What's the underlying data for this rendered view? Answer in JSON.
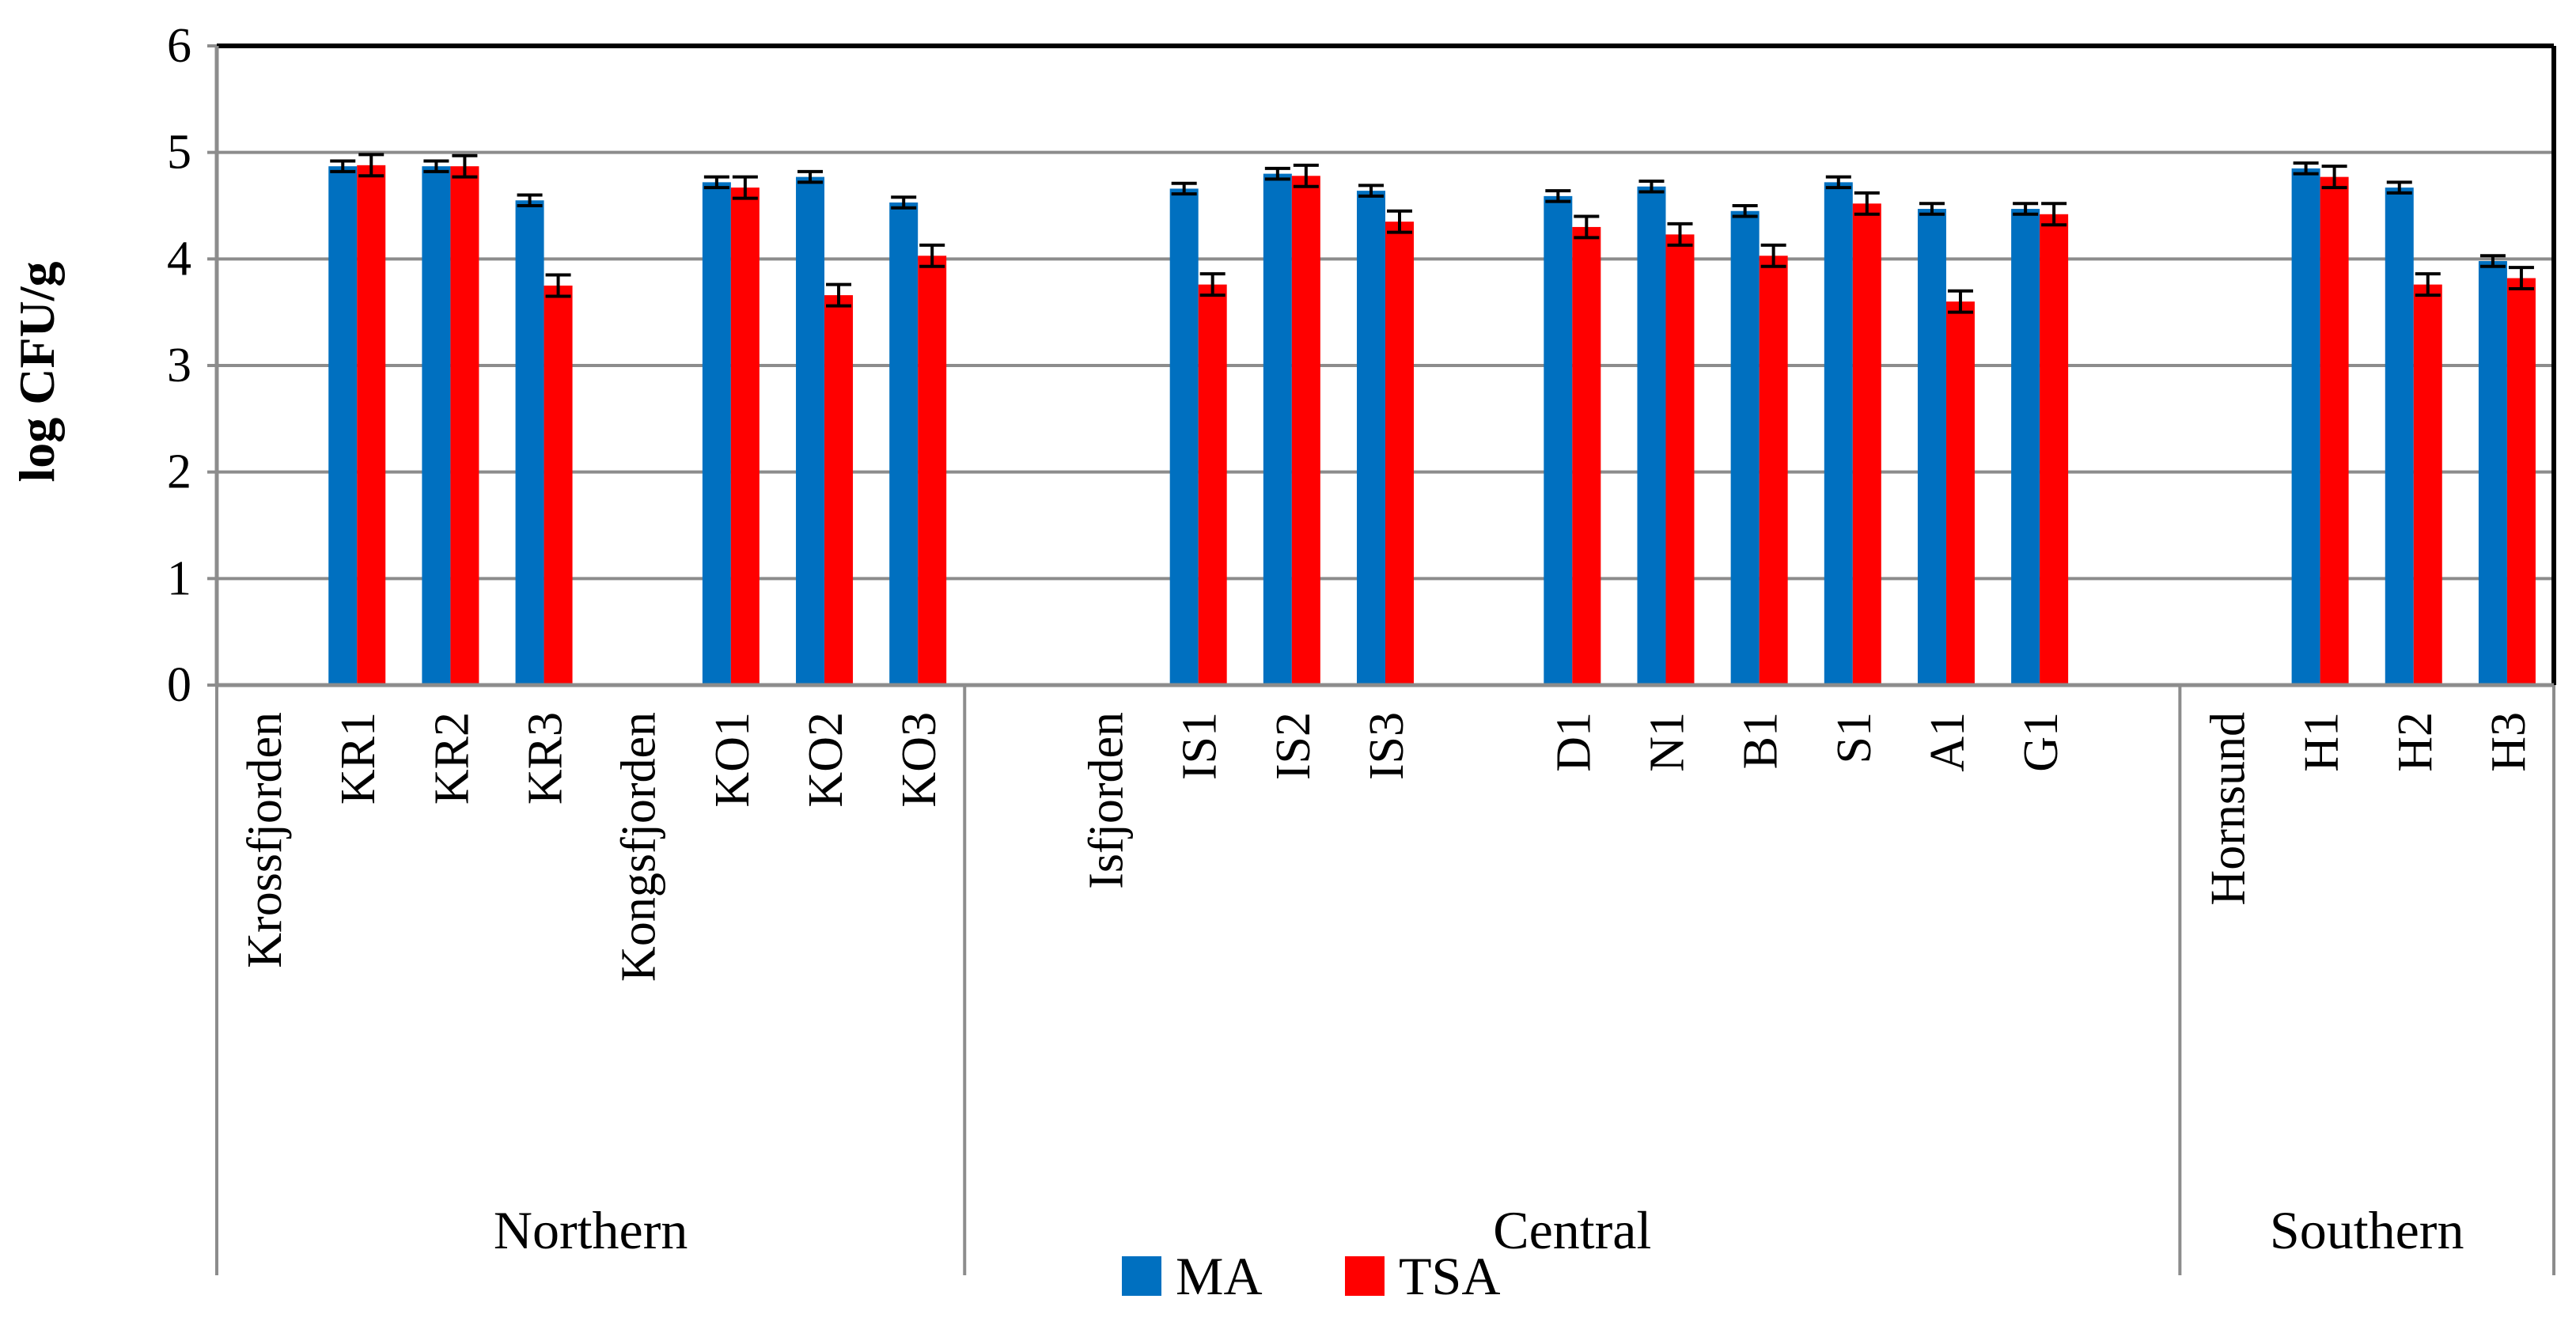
{
  "chart_data": {
    "type": "bar",
    "title": "",
    "xlabel": "",
    "ylabel": "log CFU/g",
    "ylim": [
      0,
      6
    ],
    "yticks": [
      0,
      1,
      2,
      3,
      4,
      5,
      6
    ],
    "grid": true,
    "legend_position": "bottom-center",
    "categories": [
      "Krossfjorden",
      "KR1",
      "KR2",
      "KR3",
      "Kongsfjorden",
      "KO1",
      "KO2",
      "KO3",
      "",
      "Isfjorden",
      "IS1",
      "IS2",
      "IS3",
      "",
      "D1",
      "N1",
      "B1",
      "S1",
      "A1",
      "G1",
      "",
      "Hornsund",
      "H1",
      "H2",
      "H3"
    ],
    "groups": [
      {
        "label": "Northern",
        "start": 0,
        "end": 8
      },
      {
        "label": "Central",
        "start": 8,
        "end": 21
      },
      {
        "label": "Southern",
        "start": 21,
        "end": 25
      }
    ],
    "series": [
      {
        "name": "MA",
        "color": "#0070C0",
        "values": [
          null,
          4.87,
          4.87,
          4.55,
          null,
          4.72,
          4.77,
          4.53,
          null,
          null,
          4.66,
          4.8,
          4.64,
          null,
          4.59,
          4.68,
          4.45,
          4.72,
          4.47,
          4.47,
          null,
          null,
          4.85,
          4.67,
          3.98
        ],
        "errors": [
          null,
          0.05,
          0.05,
          0.05,
          null,
          0.05,
          0.05,
          0.05,
          null,
          null,
          0.05,
          0.05,
          0.05,
          null,
          0.05,
          0.05,
          0.05,
          0.05,
          0.05,
          0.05,
          null,
          null,
          0.05,
          0.05,
          0.05
        ]
      },
      {
        "name": "TSA",
        "color": "#FF0000",
        "values": [
          null,
          4.88,
          4.87,
          3.75,
          null,
          4.67,
          3.66,
          4.03,
          null,
          null,
          3.76,
          4.78,
          4.35,
          null,
          4.3,
          4.23,
          4.03,
          4.52,
          3.6,
          4.42,
          null,
          null,
          4.77,
          3.76,
          3.82
        ],
        "errors": [
          null,
          0.1,
          0.1,
          0.1,
          null,
          0.1,
          0.1,
          0.1,
          null,
          null,
          0.1,
          0.1,
          0.1,
          null,
          0.1,
          0.1,
          0.1,
          0.1,
          0.1,
          0.1,
          null,
          null,
          0.1,
          0.1,
          0.1
        ]
      }
    ]
  }
}
